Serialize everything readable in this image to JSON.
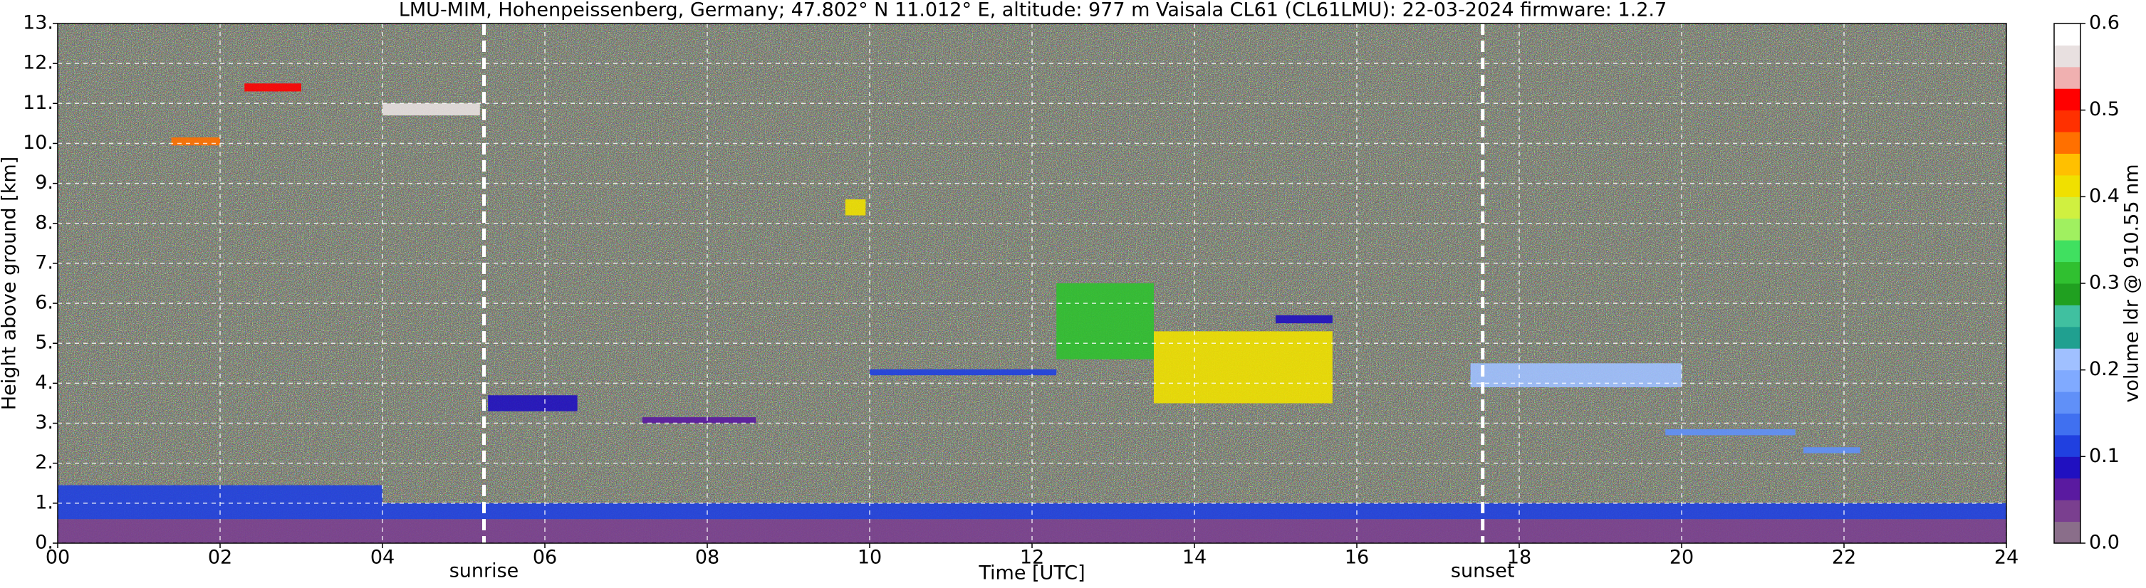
{
  "chart_data": {
    "type": "heatmap",
    "title": "LMU-MIM, Hohenpeissenberg, Germany; 47.802° N 11.012° E, altitude: 977 m    Vaisala CL61 (CL61LMU): 22-03-2024    firmware: 1.2.7",
    "x_label": "Time [UTC]",
    "y_label": "Height above ground [km]",
    "colorbar_label": "volume ldr @ 910.55 nm",
    "xlim": [
      0,
      24
    ],
    "xticks": [
      {
        "value": 0,
        "label": "00"
      },
      {
        "value": 2,
        "label": "02"
      },
      {
        "value": 4,
        "label": "04"
      },
      {
        "value": 6,
        "label": "06"
      },
      {
        "value": 8,
        "label": "08"
      },
      10,
      12,
      14,
      16,
      18,
      20,
      22,
      24
    ],
    "ylim": [
      0,
      13
    ],
    "yticks": [
      {
        "value": 0,
        "label": "0."
      },
      {
        "value": 1,
        "label": "1."
      },
      {
        "value": 2,
        "label": "2."
      },
      {
        "value": 3,
        "label": "3."
      },
      {
        "value": 4,
        "label": "4."
      },
      {
        "value": 5,
        "label": "5."
      },
      {
        "value": 6,
        "label": "6."
      },
      {
        "value": 7,
        "label": "7."
      },
      {
        "value": 8,
        "label": "8."
      },
      {
        "value": 9,
        "label": "9."
      },
      {
        "value": 10,
        "label": "10."
      },
      {
        "value": 11,
        "label": "11."
      },
      {
        "value": 12,
        "label": "12."
      },
      {
        "value": 13,
        "label": "13."
      }
    ],
    "clim": [
      0,
      0.6
    ],
    "cticks": [
      {
        "value": 0,
        "label": "0.0"
      },
      0.1,
      0.2,
      0.3,
      0.4,
      0.5,
      0.6
    ],
    "colormap": [
      "#8a6e8a",
      "#7a3f8f",
      "#5a1aa0",
      "#2010c0",
      "#2040e0",
      "#4070f0",
      "#6090f8",
      "#80aaff",
      "#a0c0ff",
      "#20a090",
      "#40c0a0",
      "#20a020",
      "#30c030",
      "#40e060",
      "#a0f060",
      "#d0f040",
      "#f0e000",
      "#ffc000",
      "#ff7000",
      "#ff3000",
      "#ff0000",
      "#f0b0b0",
      "#e8e0e0",
      "#ffffff"
    ],
    "grid": true,
    "annotations": [
      {
        "text": "sunrise",
        "x": 5.25
      },
      {
        "text": "sunset",
        "x": 17.55
      }
    ],
    "layers": [
      {
        "x": [
          0,
          24
        ],
        "y": [
          0,
          0.6
        ],
        "value": 0.03
      },
      {
        "x": [
          0,
          24
        ],
        "y": [
          0.6,
          1.0
        ],
        "value": 0.1
      },
      {
        "x": [
          0,
          4
        ],
        "y": [
          1.0,
          1.45
        ],
        "value": 0.12
      },
      {
        "x": [
          5.3,
          6.4
        ],
        "y": [
          3.3,
          3.7
        ],
        "value": 0.08
      },
      {
        "x": [
          7.2,
          8.6
        ],
        "y": [
          3.0,
          3.15
        ],
        "value": 0.06
      },
      {
        "x": [
          10,
          12.3
        ],
        "y": [
          4.2,
          4.35
        ],
        "value": 0.1
      },
      {
        "x": [
          12.3,
          13.5
        ],
        "y": [
          4.6,
          6.5
        ],
        "value": 0.3
      },
      {
        "x": [
          13.5,
          15.7
        ],
        "y": [
          3.5,
          5.3
        ],
        "value": 0.4
      },
      {
        "x": [
          15,
          15.7
        ],
        "y": [
          5.5,
          5.7
        ],
        "value": 0.08
      },
      {
        "x": [
          17.4,
          20
        ],
        "y": [
          3.9,
          4.5
        ],
        "value": 0.2
      },
      {
        "x": [
          19.8,
          21.4
        ],
        "y": [
          2.7,
          2.85
        ],
        "value": 0.15
      },
      {
        "x": [
          21.5,
          22.2
        ],
        "y": [
          2.25,
          2.4
        ],
        "value": 0.15
      },
      {
        "x": [
          1.4,
          2
        ],
        "y": [
          9.95,
          10.15
        ],
        "value": 0.45
      },
      {
        "x": [
          2.3,
          3
        ],
        "y": [
          11.3,
          11.5
        ],
        "value": 0.5
      },
      {
        "x": [
          4,
          5.2
        ],
        "y": [
          10.7,
          11.0
        ],
        "value": 0.55
      },
      {
        "x": [
          9.7,
          9.95
        ],
        "y": [
          8.2,
          8.6
        ],
        "value": 0.4
      }
    ]
  }
}
